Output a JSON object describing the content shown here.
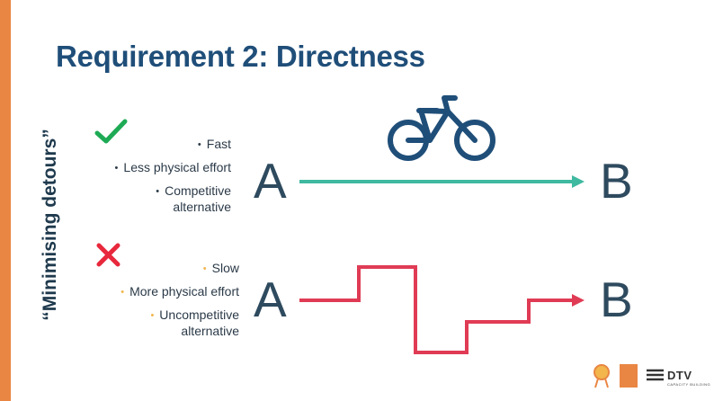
{
  "title": "Requirement 2: Directness",
  "vertical_label": "“Minimising detours”",
  "good": {
    "icon": "check-icon",
    "color": "#1EAA55",
    "items": [
      "Fast",
      "Less physical effort",
      "Competitive\nalternative"
    ]
  },
  "bad": {
    "icon": "cross-icon",
    "color": "#E8283C",
    "items": [
      "Slow",
      "More physical effort",
      "Uncompetitive\nalternative"
    ]
  },
  "route_good": {
    "start": "A",
    "end": "B",
    "color": "#3FB9A0"
  },
  "route_bad": {
    "start": "A",
    "end": "B",
    "color": "#E03B55"
  },
  "bicycle_icon": "bicycle-icon",
  "accent_color": "#E98643",
  "footer": {
    "brand": "DTV",
    "brand_sub": "CAPACITY BUILDING"
  }
}
